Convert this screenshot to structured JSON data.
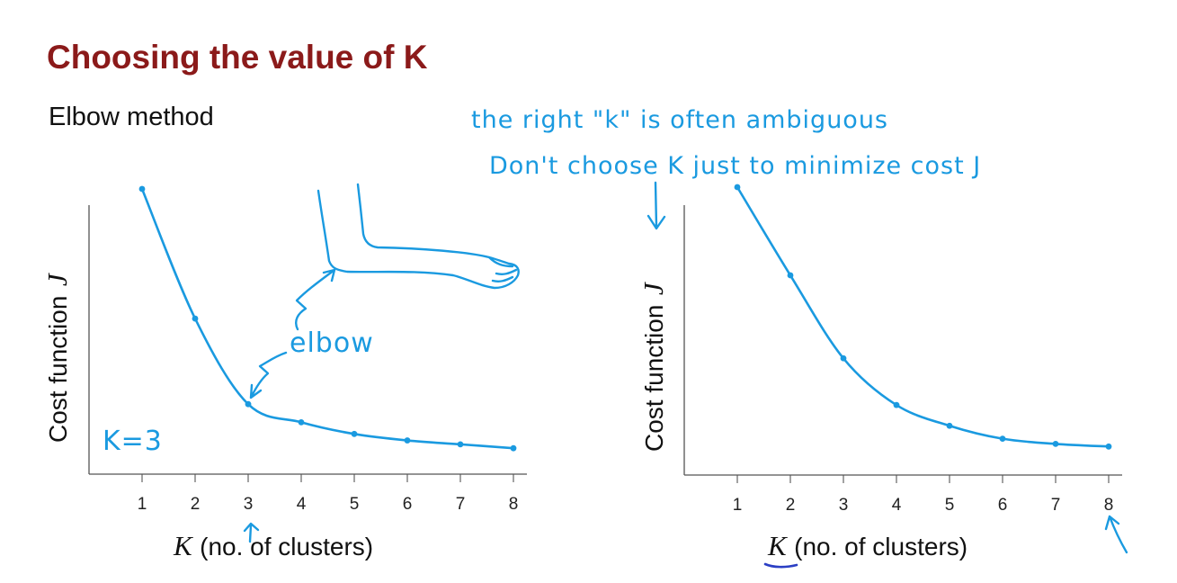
{
  "slide": {
    "title": "Choosing the value of K",
    "subtitle": "Elbow method"
  },
  "annotations": {
    "note_line1": "the right \"k\" is often ambiguous",
    "note_line2": "Don't choose K just to minimize cost J",
    "elbow_label": "elbow",
    "k_equals": "K=3"
  },
  "colors": {
    "title": "#8b1a1a",
    "ink": "#1a9ae0",
    "axis": "#555555"
  },
  "chart_data": [
    {
      "type": "line",
      "x": [
        1,
        2,
        3,
        4,
        5,
        6,
        7,
        8
      ],
      "series": [
        {
          "values": [
            100,
            50,
            17,
            10,
            5.5,
            3,
            1.5,
            0
          ]
        }
      ],
      "xlabel_var": "K",
      "xlabel_rest": "(no. of clusters)",
      "ylabel_text": "Cost function",
      "ylabel_var": "J",
      "tick_labels": [
        "1",
        "2",
        "3",
        "4",
        "5",
        "6",
        "7",
        "8"
      ],
      "xlim": [
        0,
        8
      ],
      "ylim": [
        -10,
        100
      ],
      "grid": false,
      "legend": "none"
    },
    {
      "type": "line",
      "x": [
        1,
        2,
        3,
        4,
        5,
        6,
        7,
        8
      ],
      "series": [
        {
          "values": [
            100,
            66,
            34,
            16,
            8,
            3,
            1,
            0
          ]
        }
      ],
      "xlabel_var": "K",
      "xlabel_rest": "(no. of clusters)",
      "ylabel_text": "Cost function",
      "ylabel_var": "J",
      "tick_labels": [
        "1",
        "2",
        "3",
        "4",
        "5",
        "6",
        "7",
        "8"
      ],
      "xlim": [
        0,
        8
      ],
      "ylim": [
        -11,
        100
      ],
      "grid": false,
      "legend": "none"
    }
  ]
}
